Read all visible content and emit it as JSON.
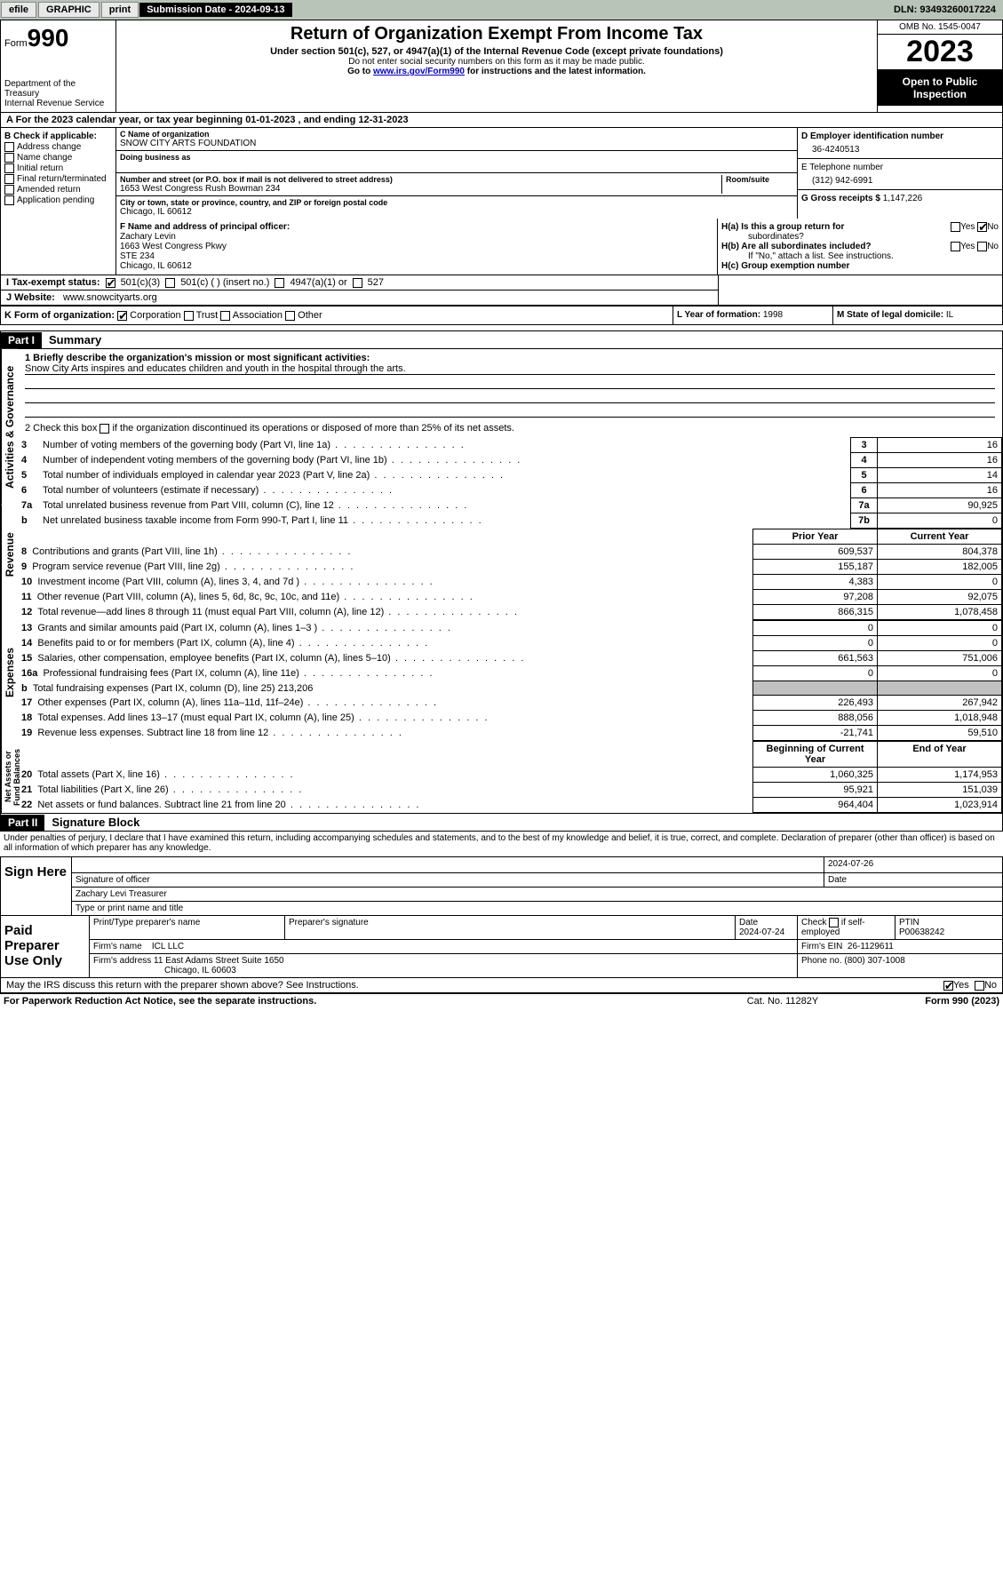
{
  "topbar": {
    "efile": "efile",
    "graphic": "GRAPHIC",
    "print": "print",
    "submission": "Submission Date - 2024-09-13",
    "dln": "DLN: 93493260017224"
  },
  "header": {
    "form_word": "Form",
    "form_num": "990",
    "dept": "Department of the Treasury",
    "irs": "Internal Revenue Service",
    "title": "Return of Organization Exempt From Income Tax",
    "sub": "Under section 501(c), 527, or 4947(a)(1) of the Internal Revenue Code (except private foundations)",
    "note1": "Do not enter social security numbers on this form as it may be made public.",
    "note2_pre": "Go to ",
    "note2_link": "www.irs.gov/Form990",
    "note2_post": " for instructions and the latest information.",
    "omb": "OMB No. 1545-0047",
    "year": "2023",
    "inspect1": "Open to Public",
    "inspect2": "Inspection"
  },
  "line_a": "A For the 2023 calendar year, or tax year beginning 01-01-2023    , and ending 12-31-2023",
  "section_b": {
    "title": "B Check if applicable:",
    "items": [
      "Address change",
      "Name change",
      "Initial return",
      "Final return/terminated",
      "Amended return",
      "Application pending"
    ]
  },
  "section_c": {
    "name_lbl": "C Name of organization",
    "name": "SNOW CITY ARTS FOUNDATION",
    "dba_lbl": "Doing business as",
    "street_lbl": "Number and street (or P.O. box if mail is not delivered to street address)",
    "room_lbl": "Room/suite",
    "street": "1653 West Congress Rush Bowman 234",
    "city_lbl": "City or town, state or province, country, and ZIP or foreign postal code",
    "city": "Chicago, IL  60612"
  },
  "section_d": {
    "lbl": "D Employer identification number",
    "val": "36-4240513"
  },
  "section_e": {
    "lbl": "E Telephone number",
    "val": "(312) 942-6991"
  },
  "section_g": {
    "lbl": "G Gross receipts $",
    "val": "1,147,226"
  },
  "section_f": {
    "lbl": "F Name and address of principal officer:",
    "name": "Zachary Levin",
    "addr1": "1663 West Congress Pkwy",
    "addr2": "STE 234",
    "addr3": "Chicago, IL  60612"
  },
  "section_h": {
    "ha": "H(a)  Is this a group return for",
    "ha2": "subordinates?",
    "hb": "H(b)  Are all subordinates included?",
    "hb_note": "If \"No,\" attach a list. See instructions.",
    "hc": "H(c)  Group exemption number",
    "yes": "Yes",
    "no": "No"
  },
  "line_i": {
    "lbl": "I    Tax-exempt status:",
    "opt1": "501(c)(3)",
    "opt2": "501(c) (   ) (insert no.)",
    "opt3": "4947(a)(1) or",
    "opt4": "527"
  },
  "line_j": {
    "lbl": "J   Website:",
    "val": "www.snowcityarts.org"
  },
  "line_k": {
    "lbl": "K Form of organization:",
    "opts": [
      "Corporation",
      "Trust",
      "Association",
      "Other"
    ]
  },
  "line_l": {
    "lbl": "L Year of formation:",
    "val": "1998"
  },
  "line_m": {
    "lbl": "M State of legal domicile:",
    "val": "IL"
  },
  "part1": {
    "hdr": "Part I",
    "title": "Summary"
  },
  "mission": {
    "q1": "1   Briefly describe the organization's mission or most significant activities:",
    "text": "Snow City Arts inspires and educates children and youth in the hospital through the arts.",
    "q2": "2   Check this box",
    "q2b": "if the organization discontinued its operations or disposed of more than 25% of its net assets."
  },
  "side_labels": {
    "gov": "Activities & Governance",
    "rev": "Revenue",
    "exp": "Expenses",
    "net": "Net Assets or Fund Balances"
  },
  "gov_rows": [
    {
      "n": "3",
      "t": "Number of voting members of the governing body (Part VI, line 1a)",
      "k": "3",
      "v": "16"
    },
    {
      "n": "4",
      "t": "Number of independent voting members of the governing body (Part VI, line 1b)",
      "k": "4",
      "v": "16"
    },
    {
      "n": "5",
      "t": "Total number of individuals employed in calendar year 2023 (Part V, line 2a)",
      "k": "5",
      "v": "14"
    },
    {
      "n": "6",
      "t": "Total number of volunteers (estimate if necessary)",
      "k": "6",
      "v": "16"
    },
    {
      "n": "7a",
      "t": "Total unrelated business revenue from Part VIII, column (C), line 12",
      "k": "7a",
      "v": "90,925"
    },
    {
      "n": "b",
      "t": "Net unrelated business taxable income from Form 990-T, Part I, line 11",
      "k": "7b",
      "v": "0"
    }
  ],
  "col_headers": {
    "prior": "Prior Year",
    "current": "Current Year",
    "begin": "Beginning of Current Year",
    "end": "End of Year"
  },
  "rev_rows": [
    {
      "n": "8",
      "t": "Contributions and grants (Part VIII, line 1h)",
      "p": "609,537",
      "c": "804,378"
    },
    {
      "n": "9",
      "t": "Program service revenue (Part VIII, line 2g)",
      "p": "155,187",
      "c": "182,005"
    },
    {
      "n": "10",
      "t": "Investment income (Part VIII, column (A), lines 3, 4, and 7d )",
      "p": "4,383",
      "c": "0"
    },
    {
      "n": "11",
      "t": "Other revenue (Part VIII, column (A), lines 5, 6d, 8c, 9c, 10c, and 11e)",
      "p": "97,208",
      "c": "92,075"
    },
    {
      "n": "12",
      "t": "Total revenue—add lines 8 through 11 (must equal Part VIII, column (A), line 12)",
      "p": "866,315",
      "c": "1,078,458"
    }
  ],
  "exp_rows": [
    {
      "n": "13",
      "t": "Grants and similar amounts paid (Part IX, column (A), lines 1–3 )",
      "p": "0",
      "c": "0"
    },
    {
      "n": "14",
      "t": "Benefits paid to or for members (Part IX, column (A), line 4)",
      "p": "0",
      "c": "0"
    },
    {
      "n": "15",
      "t": "Salaries, other compensation, employee benefits (Part IX, column (A), lines 5–10)",
      "p": "661,563",
      "c": "751,006"
    },
    {
      "n": "16a",
      "t": "Professional fundraising fees (Part IX, column (A), line 11e)",
      "p": "0",
      "c": "0"
    },
    {
      "n": "b",
      "t": "Total fundraising expenses (Part IX, column (D), line 25) 213,206",
      "gray": true
    },
    {
      "n": "17",
      "t": "Other expenses (Part IX, column (A), lines 11a–11d, 11f–24e)",
      "p": "226,493",
      "c": "267,942"
    },
    {
      "n": "18",
      "t": "Total expenses. Add lines 13–17 (must equal Part IX, column (A), line 25)",
      "p": "888,056",
      "c": "1,018,948"
    },
    {
      "n": "19",
      "t": "Revenue less expenses. Subtract line 18 from line 12",
      "p": "-21,741",
      "c": "59,510"
    }
  ],
  "net_rows": [
    {
      "n": "20",
      "t": "Total assets (Part X, line 16)",
      "p": "1,060,325",
      "c": "1,174,953"
    },
    {
      "n": "21",
      "t": "Total liabilities (Part X, line 26)",
      "p": "95,921",
      "c": "151,039"
    },
    {
      "n": "22",
      "t": "Net assets or fund balances. Subtract line 21 from line 20",
      "p": "964,404",
      "c": "1,023,914"
    }
  ],
  "part2": {
    "hdr": "Part II",
    "title": "Signature Block"
  },
  "perjury": "Under penalties of perjury, I declare that I have examined this return, including accompanying schedules and statements, and to the best of my knowledge and belief, it is true, correct, and complete. Declaration of preparer (other than officer) is based on all information of which preparer has any knowledge.",
  "sign_here": {
    "label": "Sign Here",
    "date": "2024-07-26",
    "sig_lbl": "Signature of officer",
    "name": "Zachary Levi  Treasurer",
    "type_lbl": "Type or print name and title",
    "date_lbl": "Date"
  },
  "paid_prep": {
    "label": "Paid Preparer Use Only",
    "print_lbl": "Print/Type preparer's name",
    "sig_lbl": "Preparer's signature",
    "date_lbl": "Date",
    "date": "2024-07-24",
    "check_lbl": "Check",
    "self_lbl": "if self-employed",
    "ptin_lbl": "PTIN",
    "ptin": "P00638242",
    "firm_name_lbl": "Firm's name",
    "firm_name": "ICL LLC",
    "firm_ein_lbl": "Firm's EIN",
    "firm_ein": "26-1129611",
    "firm_addr_lbl": "Firm's address",
    "firm_addr1": "11 East Adams Street Suite 1650",
    "firm_addr2": "Chicago, IL  60603",
    "phone_lbl": "Phone no.",
    "phone": "(800) 307-1008"
  },
  "discuss": {
    "q": "May the IRS discuss this return with the preparer shown above? See Instructions.",
    "yes": "Yes",
    "no": "No"
  },
  "footer": {
    "left": "For Paperwork Reduction Act Notice, see the separate instructions.",
    "mid": "Cat. No. 11282Y",
    "right": "Form 990 (2023)"
  },
  "colors": {
    "topbar_bg": "#b8c4b8",
    "black": "#000000",
    "link": "#0000cc",
    "gray_fill": "#c0c0c0"
  }
}
